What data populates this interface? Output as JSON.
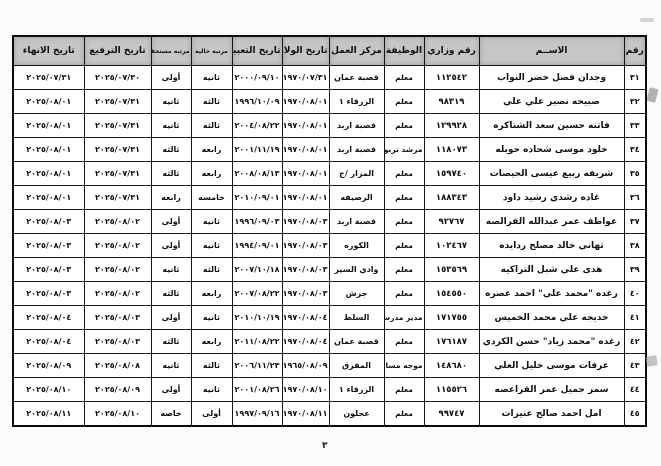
{
  "page": {
    "number": "٣"
  },
  "table": {
    "headers": [
      "رقم",
      "الاســم",
      "رقم وزاري",
      "الوظيفة",
      "مركز العمل",
      "تاريخ الولادة",
      "تاريخ التعيين",
      "مرتبه حاليه",
      "مرتبه مستحقه",
      "تاريخ الترفيع",
      "تاريخ الانهاء"
    ],
    "rows": [
      {
        "num": "٣١",
        "name": "وجدان فضل خضر النواب",
        "ministry_no": "١١٢٥٤٢",
        "job": "معلم",
        "work_center": "قصبة عمان",
        "birth_date": "١٩٧٠/٠٧/٣١",
        "hire_date": "٢٠٠٠/٠٩/١٠",
        "current_rank": "ثانيه",
        "due_rank": "أولى",
        "promotion_date": "٢٠٢٥/٠٧/٣٠",
        "end_date": "٢٠٢٥/٠٧/٣١"
      },
      {
        "num": "٣٢",
        "name": "صبيحه نصير علي علي",
        "ministry_no": "٩٨٣١٩",
        "job": "معلم",
        "work_center": "الزرقاء ١",
        "birth_date": "١٩٧٠/٠٨/٠١",
        "hire_date": "١٩٩٦/١٠/٠٩",
        "current_rank": "ثالثه",
        "due_rank": "ثانيه",
        "promotion_date": "٢٠٢٥/٠٧/٣١",
        "end_date": "٢٠٢٥/٠٨/٠١"
      },
      {
        "num": "٣٣",
        "name": "فاتنه حسين سعد الشناكره",
        "ministry_no": "١٢٩٩٢٨",
        "job": "معلم",
        "work_center": "قصبة اربد",
        "birth_date": "١٩٧٠/٠٨/٠١",
        "hire_date": "٢٠٠٤/٠٨/٢٢",
        "current_rank": "ثالثه",
        "due_rank": "ثانيه",
        "promotion_date": "٢٠٢٥/٠٧/٣١",
        "end_date": "٢٠٢٥/٠٨/٠١"
      },
      {
        "num": "٣٤",
        "name": "خلود موسى شحاده حويله",
        "ministry_no": "١١٨٠٧٣",
        "job": "مرشد تربوي",
        "work_center": "قصبة اربد",
        "birth_date": "١٩٧٠/٠٨/٠١",
        "hire_date": "٢٠٠١/١١/١٩",
        "current_rank": "رابعه",
        "due_rank": "ثالثه",
        "promotion_date": "٢٠٢٥/٠٧/٣١",
        "end_date": "٢٠٢٥/٠٨/٠١"
      },
      {
        "num": "٣٥",
        "name": "شريفه ربيع عيسى الحيصات",
        "ministry_no": "١٥٩٧٤٠",
        "job": "معلم",
        "work_center": "المزار /ج",
        "birth_date": "١٩٧٠/٠٨/٠١",
        "hire_date": "٢٠٠٨/٠٨/١٣",
        "current_rank": "رابعه",
        "due_rank": "ثالثه",
        "promotion_date": "٢٠٢٥/٠٧/٣١",
        "end_date": "٢٠٢٥/٠٨/٠١"
      },
      {
        "num": "٣٦",
        "name": "غاده رشدي رشيد داود",
        "ministry_no": "١٨٨٣٤٣",
        "job": "معلم",
        "work_center": "الرصيفه",
        "birth_date": "١٩٧٠/٠٨/٠١",
        "hire_date": "٢٠١٠/٠٩/٠١",
        "current_rank": "خامسه",
        "due_rank": "رابعه",
        "promotion_date": "٢٠٢٥/٠٧/٣١",
        "end_date": "٢٠٢٥/٠٨/٠١"
      },
      {
        "num": "٣٧",
        "name": "عواطف عمر عبدالله القرالصه",
        "ministry_no": "٩٢٧٦٧",
        "job": "معلم",
        "work_center": "قصبة اربد",
        "birth_date": "١٩٧٠/٠٨/٠٣",
        "hire_date": "١٩٩٦/٠٩/٠٣",
        "current_rank": "ثانيه",
        "due_rank": "أولى",
        "promotion_date": "٢٠٢٥/٠٨/٠٢",
        "end_date": "٢٠٢٥/٠٨/٠٣"
      },
      {
        "num": "٣٨",
        "name": "تهاني خالد مصلح ردايده",
        "ministry_no": "١٠٢٤٦٧",
        "job": "معلم",
        "work_center": "الكوره",
        "birth_date": "١٩٧٠/٠٨/٠٣",
        "hire_date": "١٩٩٤/٠٩/٠١",
        "current_rank": "ثانيه",
        "due_rank": "أولى",
        "promotion_date": "٢٠٢٥/٠٨/٠٢",
        "end_date": "٢٠٢٥/٠٨/٠٣"
      },
      {
        "num": "٣٩",
        "name": "هدى علي شبل التراكيه",
        "ministry_no": "١٥٣٥٦٩",
        "job": "معلم",
        "work_center": "وادي السير",
        "birth_date": "١٩٧٠/٠٨/٠٣",
        "hire_date": "٢٠٠٧/١٠/١٨",
        "current_rank": "ثالثه",
        "due_rank": "ثانيه",
        "promotion_date": "٢٠٢٥/٠٨/٠٢",
        "end_date": "٢٠٢٥/٠٨/٠٣"
      },
      {
        "num": "٤٠",
        "name": "رغده \"محمد علي\" احمد عصره",
        "ministry_no": "١٥٤٥٥٠",
        "job": "معلم",
        "work_center": "جرش",
        "birth_date": "١٩٧٠/٠٨/٠٣",
        "hire_date": "٢٠٠٧/٠٨/٢٢",
        "current_rank": "رابعه",
        "due_rank": "ثالثه",
        "promotion_date": "٢٠٢٥/٠٨/٠٢",
        "end_date": "٢٠٢٥/٠٨/٠٣"
      },
      {
        "num": "٤١",
        "name": "خديجه علي محمد الخميس",
        "ministry_no": "١٧١٧٥٥",
        "job": "مدير مدرسه",
        "work_center": "السلط",
        "birth_date": "١٩٧٠/٠٨/٠٤",
        "hire_date": "٢٠١٠/١٠/١٩",
        "current_rank": "ثانيه",
        "due_rank": "أولى",
        "promotion_date": "٢٠٢٥/٠٨/٠٣",
        "end_date": "٢٠٢٥/٠٨/٠٤"
      },
      {
        "num": "٤٢",
        "name": "رغده \"محمد زياد\" حسن الكردي",
        "ministry_no": "١٧٦١٨٧",
        "job": "معلم",
        "work_center": "قصبة عمان",
        "birth_date": "١٩٧٠/٠٨/٠٤",
        "hire_date": "٢٠١١/٠٨/٢٢",
        "current_rank": "رابعه",
        "due_rank": "ثالثه",
        "promotion_date": "٢٠٢٥/٠٨/٠٣",
        "end_date": "٢٠٢٥/٠٨/٠٤"
      },
      {
        "num": "٤٣",
        "name": "عرفات موسى خليل العلي",
        "ministry_no": "١٤٨٦٨٠",
        "job": "موجه مساعد",
        "work_center": "المفرق",
        "birth_date": "١٩٦٥/٠٨/٠٩",
        "hire_date": "٢٠٠٦/١١/٢٣",
        "current_rank": "ثالثه",
        "due_rank": "ثانيه",
        "promotion_date": "٢٠٢٥/٠٨/٠٨",
        "end_date": "٢٠٢٥/٠٨/٠٩"
      },
      {
        "num": "٤٤",
        "name": "سمر جميل عمر القراعصه",
        "ministry_no": "١١٥٥٢٦",
        "job": "معلم",
        "work_center": "الزرقاء ١",
        "birth_date": "١٩٧٠/٠٨/١٠",
        "hire_date": "٢٠٠١/٠٨/٢٦",
        "current_rank": "ثانيه",
        "due_rank": "أولى",
        "promotion_date": "٢٠٢٥/٠٨/٠٩",
        "end_date": "٢٠٢٥/٠٨/١٠"
      },
      {
        "num": "٤٥",
        "name": "امل احمد صالح عنيزات",
        "ministry_no": "٩٩٧٤٧",
        "job": "معلم",
        "work_center": "عجلون",
        "birth_date": "١٩٧٠/٠٨/١١",
        "hire_date": "١٩٩٧/٠٩/١٦",
        "current_rank": "أولى",
        "due_rank": "خاصه",
        "promotion_date": "٢٠٢٥/٠٨/١٠",
        "end_date": "٢٠٢٥/٠٨/١١"
      }
    ]
  }
}
